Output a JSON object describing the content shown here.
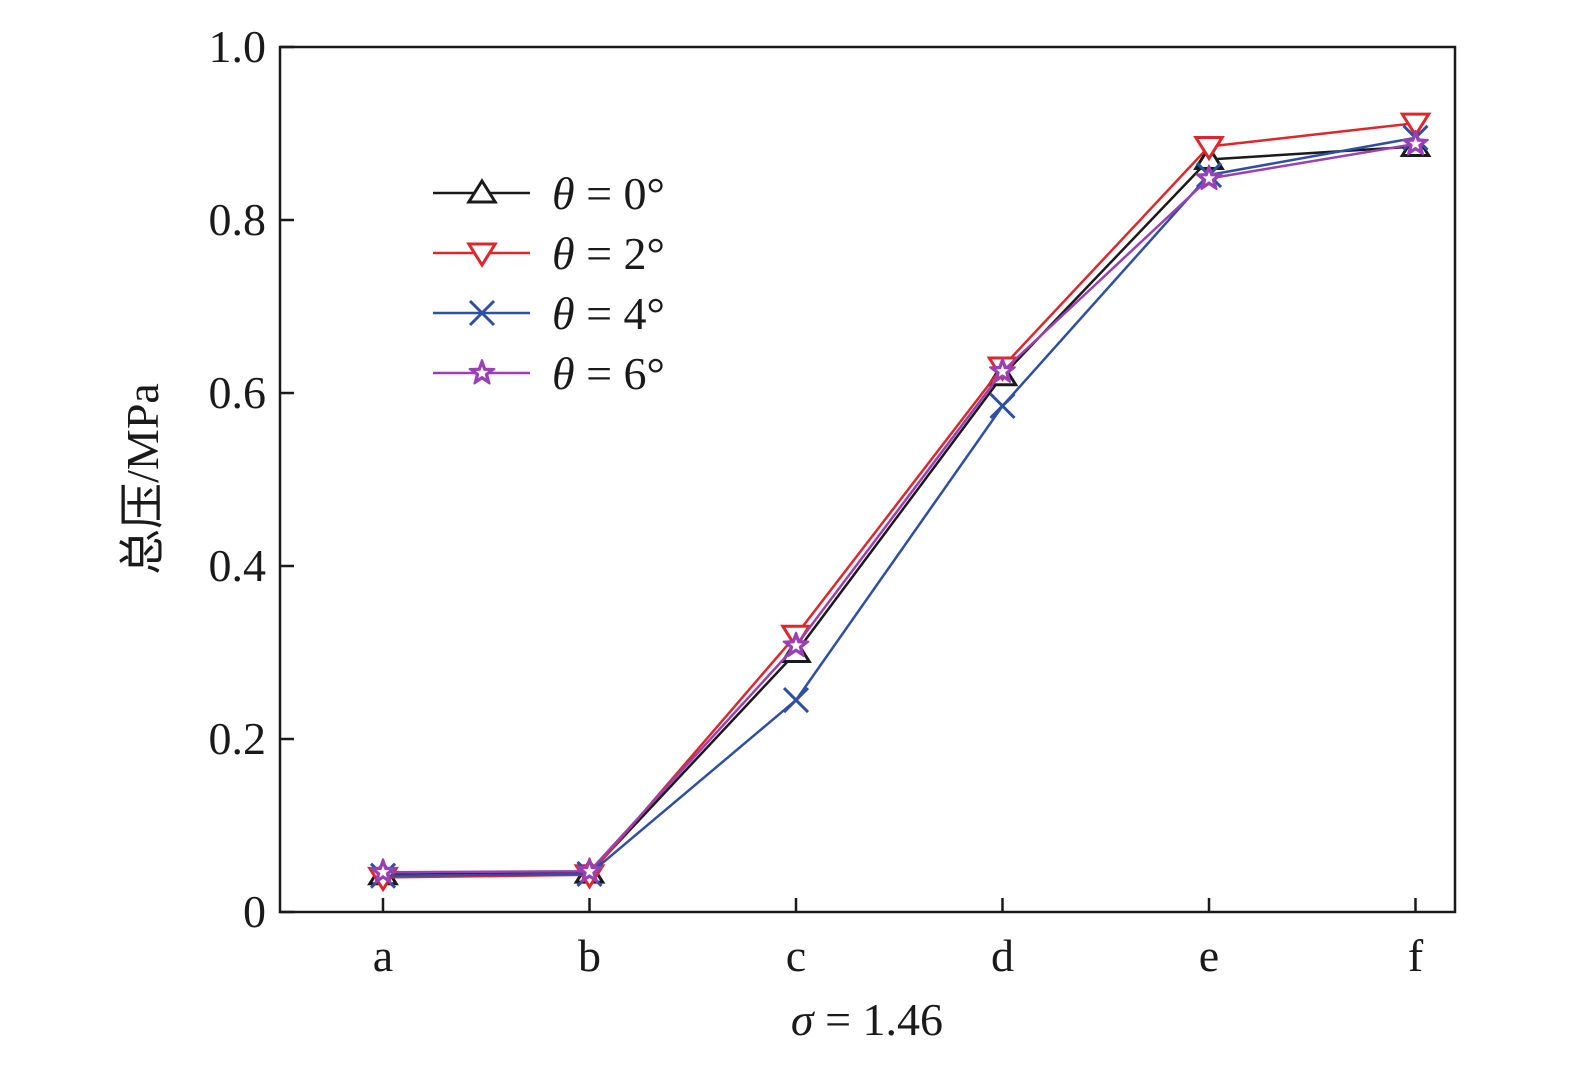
{
  "chart_data": {
    "type": "line",
    "categories": [
      "a",
      "b",
      "c",
      "d",
      "e",
      "f"
    ],
    "xlabel": "σ = 1.46",
    "ylabel": "总压/MPa",
    "ylim": [
      0,
      1.0
    ],
    "yticks": [
      0,
      0.2,
      0.4,
      0.6,
      0.8,
      1.0
    ],
    "ytick_labels": [
      "0",
      "0.2",
      "0.4",
      "0.6",
      "0.8",
      "1.0"
    ],
    "grid": false,
    "legend_position": "upper-left",
    "series": [
      {
        "name": "θ = 0°",
        "marker": "triangle-up",
        "color": "#1a1a1a",
        "values": [
          0.043,
          0.045,
          0.3,
          0.62,
          0.87,
          0.885
        ]
      },
      {
        "name": "θ = 2°",
        "marker": "triangle-down",
        "color": "#e0262b",
        "values": [
          0.04,
          0.043,
          0.32,
          0.63,
          0.885,
          0.912
        ]
      },
      {
        "name": "θ = 4°",
        "marker": "x",
        "color": "#2e4fa3",
        "values": [
          0.042,
          0.044,
          0.245,
          0.585,
          0.852,
          0.895
        ]
      },
      {
        "name": "θ = 6°",
        "marker": "star",
        "color": "#9b3fb5",
        "values": [
          0.046,
          0.047,
          0.308,
          0.625,
          0.848,
          0.888
        ]
      }
    ]
  }
}
